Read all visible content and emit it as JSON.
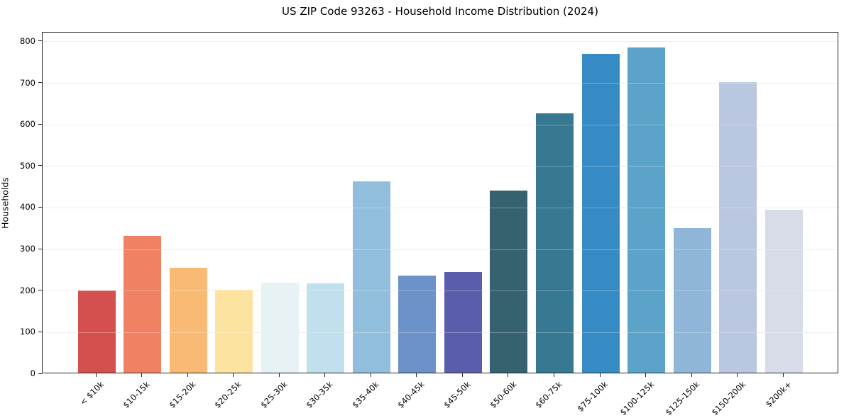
{
  "chart_data": {
    "type": "bar",
    "title": "US ZIP Code 93263 - Household Income Distribution (2024)",
    "xlabel": "",
    "ylabel": "Households",
    "categories": [
      "< $10k",
      "$10-15k",
      "$15-20k",
      "$20-25k",
      "$25-30k",
      "$30-35k",
      "$35-40k",
      "$40-45k",
      "$45-50k",
      "$50-60k",
      "$60-75k",
      "$75-100k",
      "$100-125k",
      "$125-150k",
      "$150-200k",
      "$200k+"
    ],
    "values": [
      198,
      330,
      252,
      200,
      217,
      215,
      460,
      234,
      243,
      438,
      625,
      768,
      783,
      348,
      700,
      392
    ],
    "bar_colors": [
      "#d4504e",
      "#f08162",
      "#f9bb74",
      "#fce3a0",
      "#e6f2f4",
      "#bfe0ec",
      "#92bedd",
      "#6b93c9",
      "#5a5dab",
      "#36616f",
      "#377893",
      "#368bc4",
      "#5ba3c9",
      "#8fb5d8",
      "#b9c7e0",
      "#d8dbe8"
    ],
    "ylim": [
      0,
      822
    ],
    "yticks": [
      0,
      100,
      200,
      300,
      400,
      500,
      600,
      700,
      800
    ],
    "grid": "horizontal-only",
    "grid_color": "#e7e7e7",
    "legend": "none",
    "axis_color": "#252525",
    "background_color": "#ffffff"
  }
}
